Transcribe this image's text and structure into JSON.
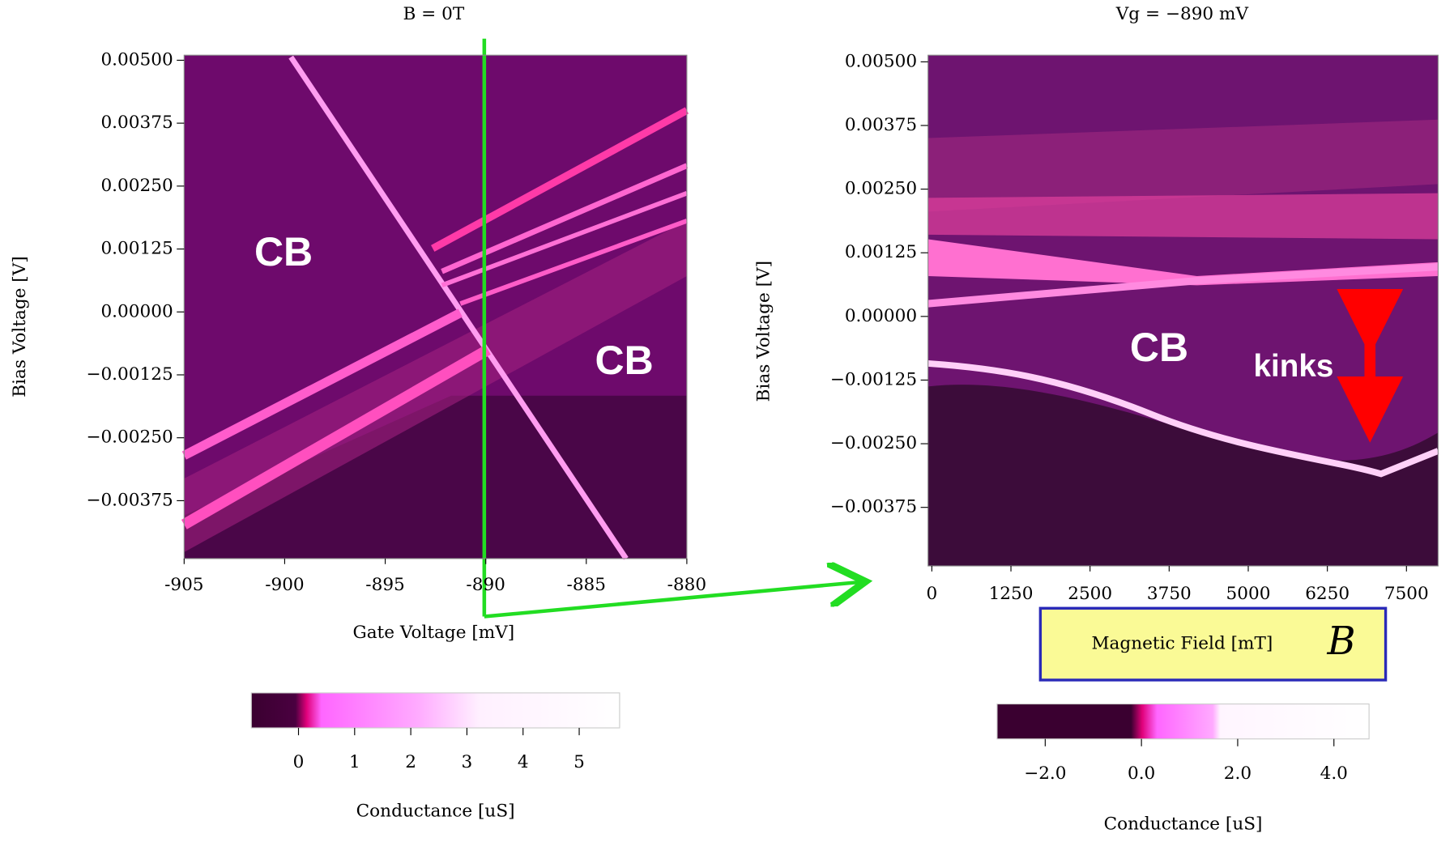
{
  "chart_data": [
    {
      "type": "heatmap",
      "title": "B = 0T",
      "xlabel": "Gate Voltage [mV]",
      "ylabel": "Bias Voltage [V]",
      "xlim": [
        -905,
        -880
      ],
      "xticks": [
        -905,
        -900,
        -895,
        -890,
        -885,
        -880
      ],
      "ylim": [
        -0.0049,
        0.0051
      ],
      "yticks": [
        {
          "value": 0.005,
          "label": "0.00500"
        },
        {
          "value": 0.00375,
          "label": "0.00375"
        },
        {
          "value": 0.0025,
          "label": "0.00250"
        },
        {
          "value": 0.00125,
          "label": "0.00125"
        },
        {
          "value": 0,
          "label": "0.00000"
        },
        {
          "value": -0.00125,
          "label": "−0.00125"
        },
        {
          "value": -0.0025,
          "label": "−0.00250"
        },
        {
          "value": -0.00375,
          "label": "−0.00375"
        }
      ],
      "annotations": [
        "CB",
        "CB"
      ],
      "colorbar": {
        "label": "Conductance [uS]",
        "lim": [
          -0.84,
          5.72
        ],
        "ticks": [
          0,
          1,
          2,
          3,
          4,
          5
        ]
      }
    },
    {
      "type": "heatmap",
      "title": "Vg = −890 mV",
      "xlabel": "Magnetic Field [mT]",
      "ylabel": "Bias Voltage [V]",
      "xlim": [
        -60,
        8000
      ],
      "xticks": [
        0,
        1250,
        2500,
        3750,
        5000,
        6250,
        7500
      ],
      "ylim": [
        -0.0049,
        0.00513
      ],
      "yticks": [
        {
          "value": 0.005,
          "label": "0.00500"
        },
        {
          "value": 0.00375,
          "label": "0.00375"
        },
        {
          "value": 0.0025,
          "label": "0.00250"
        },
        {
          "value": 0.00125,
          "label": "0.00125"
        },
        {
          "value": 0,
          "label": "0.00000"
        },
        {
          "value": -0.00125,
          "label": "−0.00125"
        },
        {
          "value": -0.0025,
          "label": "−0.00250"
        },
        {
          "value": -0.00375,
          "label": "−0.00375"
        }
      ],
      "annotations": [
        "CB",
        "kinks",
        "B"
      ],
      "colorbar": {
        "label": "Conductance [uS]",
        "lim": [
          -3.0,
          4.73
        ],
        "ticks": [
          {
            "value": -2,
            "label": "−2.0"
          },
          {
            "value": 0,
            "label": "0.0"
          },
          {
            "value": 2,
            "label": "2.0"
          },
          {
            "value": 4,
            "label": "4.0"
          }
        ]
      }
    }
  ]
}
